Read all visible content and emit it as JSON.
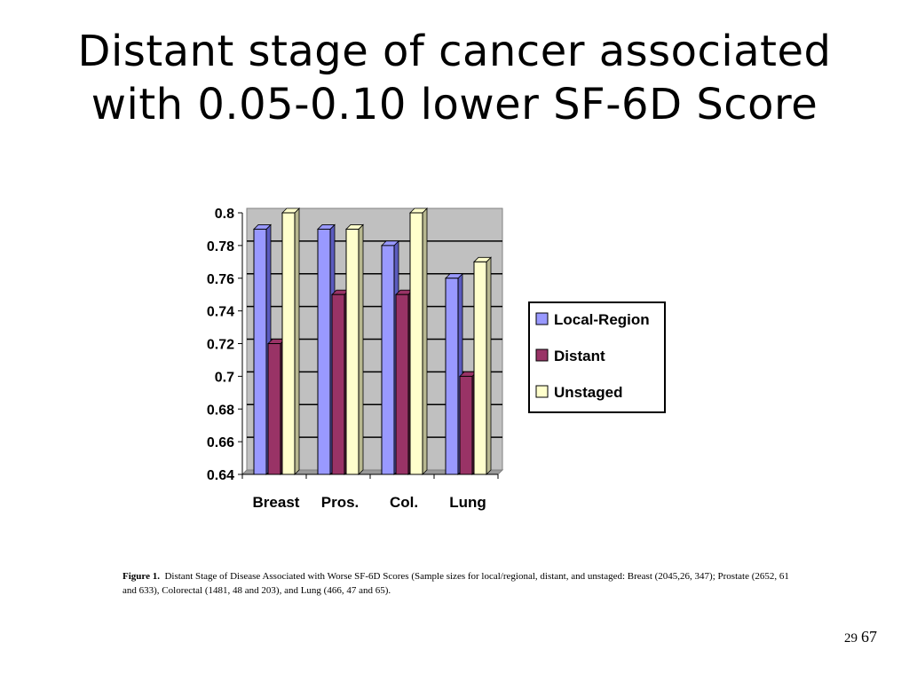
{
  "slide": {
    "title_line1": "Distant stage of cancer associated",
    "title_line2": "with 0.05-0.10 lower SF-6D Score",
    "caption_label": "Figure 1.",
    "caption_text": "Distant Stage of Disease Associated with Worse SF-6D Scores (Sample sizes for local/regional, distant, and unstaged: Breast (2045,26, 347); Prostate (2652, 61 and 633), Colorectal (1481, 48 and 203), and Lung (466, 47 and 65).",
    "page_number_small": "29",
    "page_number_large": "67"
  },
  "chart_data": {
    "type": "bar",
    "title": "",
    "xlabel": "",
    "ylabel": "",
    "categories": [
      "Breast",
      "Pros.",
      "Col.",
      "Lung"
    ],
    "series": [
      {
        "name": "Local-Region",
        "values": [
          0.79,
          0.79,
          0.78,
          0.76
        ],
        "color": "#9999ff",
        "dark": "#5b5bbf"
      },
      {
        "name": "Distant",
        "values": [
          0.72,
          0.75,
          0.75,
          0.7
        ],
        "color": "#993366",
        "dark": "#5e1f3f"
      },
      {
        "name": "Unstaged",
        "values": [
          0.8,
          0.79,
          0.8,
          0.77
        ],
        "color": "#ffffcc",
        "dark": "#b8b890"
      }
    ],
    "ylim": [
      0.64,
      0.8
    ],
    "yticks": [
      "0.64",
      "0.66",
      "0.68",
      "0.7",
      "0.72",
      "0.74",
      "0.76",
      "0.78",
      "0.8"
    ],
    "grid": true,
    "plot_background": "#c0c0c0",
    "legend_position": "right"
  }
}
